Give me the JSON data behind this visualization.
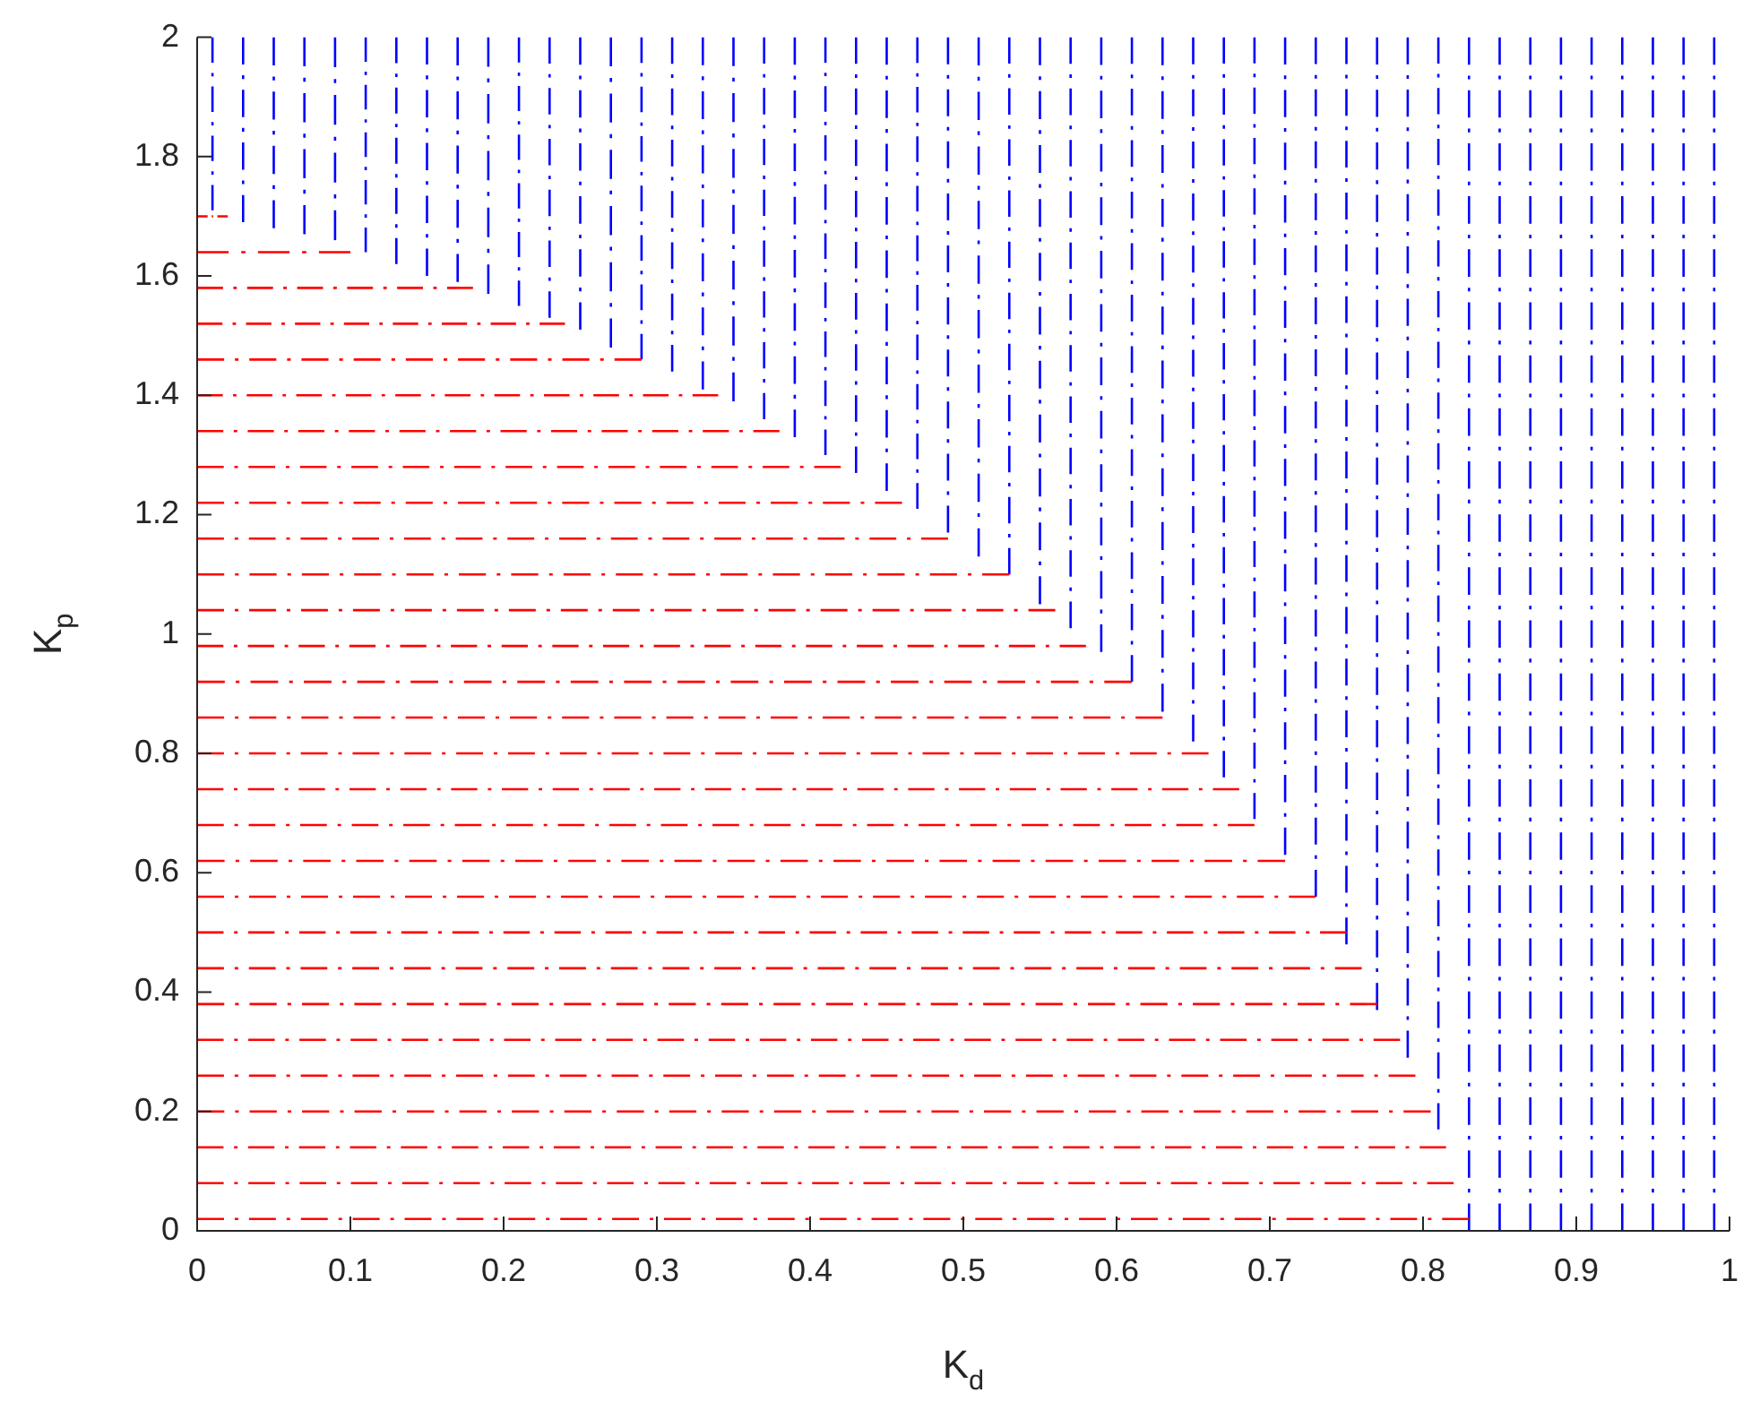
{
  "chart_data": {
    "type": "line",
    "xlabel": "K$_{d}$",
    "ylabel": "K$_{p}$",
    "xlim": [
      0,
      1
    ],
    "ylim": [
      0,
      2
    ],
    "xticks": [
      0,
      0.1,
      0.2,
      0.3,
      0.4,
      0.5,
      0.6,
      0.7,
      0.8,
      0.9,
      1
    ],
    "yticks": [
      0,
      0.2,
      0.4,
      0.6,
      0.8,
      1,
      1.2,
      1.4,
      1.6,
      1.8,
      2
    ],
    "grid": false,
    "legend": false,
    "marker": "none",
    "line_style": "dashed",
    "series": [
      {
        "color": "#ff0000",
        "x": [
          0,
          0.02
        ],
        "values": [
          1.7,
          1.7
        ]
      },
      {
        "color": "#ff0000",
        "x": [
          0,
          0.1
        ],
        "values": [
          1.64,
          1.64
        ]
      },
      {
        "color": "#ff0000",
        "x": [
          0,
          0.18
        ],
        "values": [
          1.58,
          1.58
        ]
      },
      {
        "color": "#ff0000",
        "x": [
          0,
          0.24
        ],
        "values": [
          1.52,
          1.52
        ]
      },
      {
        "color": "#ff0000",
        "x": [
          0,
          0.29
        ],
        "values": [
          1.46,
          1.46
        ]
      },
      {
        "color": "#ff0000",
        "x": [
          0,
          0.34
        ],
        "values": [
          1.4,
          1.4
        ]
      },
      {
        "color": "#ff0000",
        "x": [
          0,
          0.38
        ],
        "values": [
          1.34,
          1.34
        ]
      },
      {
        "color": "#ff0000",
        "x": [
          0,
          0.42
        ],
        "values": [
          1.28,
          1.28
        ]
      },
      {
        "color": "#ff0000",
        "x": [
          0,
          0.46
        ],
        "values": [
          1.22,
          1.22
        ]
      },
      {
        "color": "#ff0000",
        "x": [
          0,
          0.49
        ],
        "values": [
          1.16,
          1.16
        ]
      },
      {
        "color": "#ff0000",
        "x": [
          0,
          0.53
        ],
        "values": [
          1.1,
          1.1
        ]
      },
      {
        "color": "#ff0000",
        "x": [
          0,
          0.56
        ],
        "values": [
          1.04,
          1.04
        ]
      },
      {
        "color": "#ff0000",
        "x": [
          0,
          0.58
        ],
        "values": [
          0.98,
          0.98
        ]
      },
      {
        "color": "#ff0000",
        "x": [
          0,
          0.61
        ],
        "values": [
          0.92,
          0.92
        ]
      },
      {
        "color": "#ff0000",
        "x": [
          0,
          0.63
        ],
        "values": [
          0.86,
          0.86
        ]
      },
      {
        "color": "#ff0000",
        "x": [
          0,
          0.66
        ],
        "values": [
          0.8,
          0.8
        ]
      },
      {
        "color": "#ff0000",
        "x": [
          0,
          0.68
        ],
        "values": [
          0.74,
          0.74
        ]
      },
      {
        "color": "#ff0000",
        "x": [
          0,
          0.69
        ],
        "values": [
          0.68,
          0.68
        ]
      },
      {
        "color": "#ff0000",
        "x": [
          0,
          0.71
        ],
        "values": [
          0.62,
          0.62
        ]
      },
      {
        "color": "#ff0000",
        "x": [
          0,
          0.73
        ],
        "values": [
          0.56,
          0.56
        ]
      },
      {
        "color": "#ff0000",
        "x": [
          0,
          0.75
        ],
        "values": [
          0.5,
          0.5
        ]
      },
      {
        "color": "#ff0000",
        "x": [
          0,
          0.76
        ],
        "values": [
          0.44,
          0.44
        ]
      },
      {
        "color": "#ff0000",
        "x": [
          0,
          0.77
        ],
        "values": [
          0.38,
          0.38
        ]
      },
      {
        "color": "#ff0000",
        "x": [
          0,
          0.785
        ],
        "values": [
          0.32,
          0.32
        ]
      },
      {
        "color": "#ff0000",
        "x": [
          0,
          0.795
        ],
        "values": [
          0.26,
          0.26
        ]
      },
      {
        "color": "#ff0000",
        "x": [
          0,
          0.805
        ],
        "values": [
          0.2,
          0.2
        ]
      },
      {
        "color": "#ff0000",
        "x": [
          0,
          0.815
        ],
        "values": [
          0.14,
          0.14
        ]
      },
      {
        "color": "#ff0000",
        "x": [
          0,
          0.82
        ],
        "values": [
          0.08,
          0.08
        ]
      },
      {
        "color": "#ff0000",
        "x": [
          0,
          0.83
        ],
        "values": [
          0.02,
          0.02
        ]
      },
      {
        "color": "#0000ff",
        "x": [
          0.01,
          0.01
        ],
        "values": [
          1.71,
          2
        ]
      },
      {
        "color": "#0000ff",
        "x": [
          0.03,
          0.03
        ],
        "values": [
          1.69,
          2
        ]
      },
      {
        "color": "#0000ff",
        "x": [
          0.05,
          0.05
        ],
        "values": [
          1.68,
          2
        ]
      },
      {
        "color": "#0000ff",
        "x": [
          0.07,
          0.07
        ],
        "values": [
          1.67,
          2
        ]
      },
      {
        "color": "#0000ff",
        "x": [
          0.09,
          0.09
        ],
        "values": [
          1.66,
          2
        ]
      },
      {
        "color": "#0000ff",
        "x": [
          0.11,
          0.11
        ],
        "values": [
          1.64,
          2
        ]
      },
      {
        "color": "#0000ff",
        "x": [
          0.13,
          0.13
        ],
        "values": [
          1.62,
          2
        ]
      },
      {
        "color": "#0000ff",
        "x": [
          0.15,
          0.15
        ],
        "values": [
          1.6,
          2
        ]
      },
      {
        "color": "#0000ff",
        "x": [
          0.17,
          0.17
        ],
        "values": [
          1.59,
          2
        ]
      },
      {
        "color": "#0000ff",
        "x": [
          0.19,
          0.19
        ],
        "values": [
          1.57,
          2
        ]
      },
      {
        "color": "#0000ff",
        "x": [
          0.21,
          0.21
        ],
        "values": [
          1.55,
          2
        ]
      },
      {
        "color": "#0000ff",
        "x": [
          0.23,
          0.23
        ],
        "values": [
          1.53,
          2
        ]
      },
      {
        "color": "#0000ff",
        "x": [
          0.25,
          0.25
        ],
        "values": [
          1.51,
          2
        ]
      },
      {
        "color": "#0000ff",
        "x": [
          0.27,
          0.27
        ],
        "values": [
          1.48,
          2
        ]
      },
      {
        "color": "#0000ff",
        "x": [
          0.29,
          0.29
        ],
        "values": [
          1.46,
          2
        ]
      },
      {
        "color": "#0000ff",
        "x": [
          0.31,
          0.31
        ],
        "values": [
          1.44,
          2
        ]
      },
      {
        "color": "#0000ff",
        "x": [
          0.33,
          0.33
        ],
        "values": [
          1.41,
          2
        ]
      },
      {
        "color": "#0000ff",
        "x": [
          0.35,
          0.35
        ],
        "values": [
          1.39,
          2
        ]
      },
      {
        "color": "#0000ff",
        "x": [
          0.37,
          0.37
        ],
        "values": [
          1.36,
          2
        ]
      },
      {
        "color": "#0000ff",
        "x": [
          0.39,
          0.39
        ],
        "values": [
          1.33,
          2
        ]
      },
      {
        "color": "#0000ff",
        "x": [
          0.41,
          0.41
        ],
        "values": [
          1.3,
          2
        ]
      },
      {
        "color": "#0000ff",
        "x": [
          0.43,
          0.43
        ],
        "values": [
          1.27,
          2
        ]
      },
      {
        "color": "#0000ff",
        "x": [
          0.45,
          0.45
        ],
        "values": [
          1.24,
          2
        ]
      },
      {
        "color": "#0000ff",
        "x": [
          0.47,
          0.47
        ],
        "values": [
          1.21,
          2
        ]
      },
      {
        "color": "#0000ff",
        "x": [
          0.49,
          0.49
        ],
        "values": [
          1.17,
          2
        ]
      },
      {
        "color": "#0000ff",
        "x": [
          0.51,
          0.51
        ],
        "values": [
          1.13,
          2
        ]
      },
      {
        "color": "#0000ff",
        "x": [
          0.53,
          0.53
        ],
        "values": [
          1.1,
          2
        ]
      },
      {
        "color": "#0000ff",
        "x": [
          0.55,
          0.55
        ],
        "values": [
          1.05,
          2
        ]
      },
      {
        "color": "#0000ff",
        "x": [
          0.57,
          0.57
        ],
        "values": [
          1.01,
          2
        ]
      },
      {
        "color": "#0000ff",
        "x": [
          0.59,
          0.59
        ],
        "values": [
          0.97,
          2
        ]
      },
      {
        "color": "#0000ff",
        "x": [
          0.61,
          0.61
        ],
        "values": [
          0.92,
          2
        ]
      },
      {
        "color": "#0000ff",
        "x": [
          0.63,
          0.63
        ],
        "values": [
          0.87,
          2
        ]
      },
      {
        "color": "#0000ff",
        "x": [
          0.65,
          0.65
        ],
        "values": [
          0.82,
          2
        ]
      },
      {
        "color": "#0000ff",
        "x": [
          0.67,
          0.67
        ],
        "values": [
          0.76,
          2
        ]
      },
      {
        "color": "#0000ff",
        "x": [
          0.69,
          0.69
        ],
        "values": [
          0.69,
          2
        ]
      },
      {
        "color": "#0000ff",
        "x": [
          0.71,
          0.71
        ],
        "values": [
          0.63,
          2
        ]
      },
      {
        "color": "#0000ff",
        "x": [
          0.73,
          0.73
        ],
        "values": [
          0.56,
          2
        ]
      },
      {
        "color": "#0000ff",
        "x": [
          0.75,
          0.75
        ],
        "values": [
          0.48,
          2
        ]
      },
      {
        "color": "#0000ff",
        "x": [
          0.77,
          0.77
        ],
        "values": [
          0.37,
          2
        ]
      },
      {
        "color": "#0000ff",
        "x": [
          0.79,
          0.79
        ],
        "values": [
          0.29,
          2
        ]
      },
      {
        "color": "#0000ff",
        "x": [
          0.81,
          0.81
        ],
        "values": [
          0.17,
          2
        ]
      },
      {
        "color": "#0000ff",
        "x": [
          0.83,
          0.83
        ],
        "values": [
          0,
          2
        ]
      },
      {
        "color": "#0000ff",
        "x": [
          0.85,
          0.85
        ],
        "values": [
          0,
          2
        ]
      },
      {
        "color": "#0000ff",
        "x": [
          0.87,
          0.87
        ],
        "values": [
          0,
          2
        ]
      },
      {
        "color": "#0000ff",
        "x": [
          0.89,
          0.89
        ],
        "values": [
          0,
          2
        ]
      },
      {
        "color": "#0000ff",
        "x": [
          0.91,
          0.91
        ],
        "values": [
          0,
          2
        ]
      },
      {
        "color": "#0000ff",
        "x": [
          0.93,
          0.93
        ],
        "values": [
          0,
          2
        ]
      },
      {
        "color": "#0000ff",
        "x": [
          0.95,
          0.95
        ],
        "values": [
          0,
          2
        ]
      },
      {
        "color": "#0000ff",
        "x": [
          0.97,
          0.97
        ],
        "values": [
          0,
          2
        ]
      },
      {
        "color": "#0000ff",
        "x": [
          0.99,
          0.99
        ],
        "values": [
          0,
          2
        ]
      }
    ]
  }
}
